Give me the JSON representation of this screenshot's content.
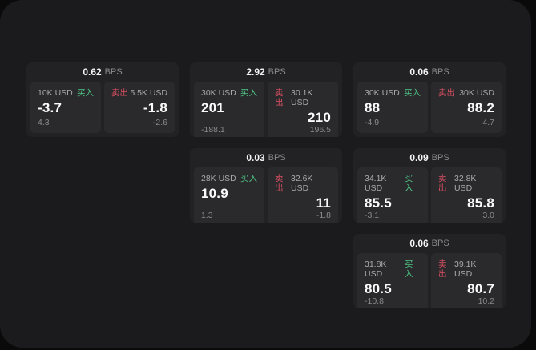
{
  "colors": {
    "buy_green": "#4ec584",
    "sell_red": "#d94f62",
    "panel_bg": "#1b1b1d",
    "card_bg": "#222224",
    "subpanel_bg": "#2a2a2c"
  },
  "cards": [
    {
      "row": 1,
      "col": 1,
      "bps_value": "0.62",
      "bps_label": "BPS",
      "buy": {
        "amount": "10K USD",
        "side_label": "买入",
        "value": "-3.7",
        "delta": "4.3"
      },
      "sell": {
        "side_label": "卖出",
        "amount": "5.5K USD",
        "value": "-1.8",
        "delta": "-2.6"
      }
    },
    {
      "row": 1,
      "col": 2,
      "bps_value": "2.92",
      "bps_label": "BPS",
      "buy": {
        "amount": "30K USD",
        "side_label": "买入",
        "value": "201",
        "delta": "-188.1"
      },
      "sell": {
        "side_label": "卖出",
        "amount": "30.1K USD",
        "value": "210",
        "delta": "196.5"
      }
    },
    {
      "row": 1,
      "col": 3,
      "bps_value": "0.06",
      "bps_label": "BPS",
      "buy": {
        "amount": "30K USD",
        "side_label": "买入",
        "value": "88",
        "delta": "-4.9"
      },
      "sell": {
        "side_label": "卖出",
        "amount": "30K USD",
        "value": "88.2",
        "delta": "4.7"
      }
    },
    {
      "row": 2,
      "col": 2,
      "bps_value": "0.03",
      "bps_label": "BPS",
      "buy": {
        "amount": "28K USD",
        "side_label": "买入",
        "value": "10.9",
        "delta": "1.3"
      },
      "sell": {
        "side_label": "卖出",
        "amount": "32.6K USD",
        "value": "11",
        "delta": "-1.8"
      }
    },
    {
      "row": 2,
      "col": 3,
      "bps_value": "0.09",
      "bps_label": "BPS",
      "buy": {
        "amount": "34.1K USD",
        "side_label": "买入",
        "value": "85.5",
        "delta": "-3.1"
      },
      "sell": {
        "side_label": "卖出",
        "amount": "32.8K USD",
        "value": "85.8",
        "delta": "3.0"
      }
    },
    {
      "row": 3,
      "col": 3,
      "bps_value": "0.06",
      "bps_label": "BPS",
      "buy": {
        "amount": "31.8K USD",
        "side_label": "买入",
        "value": "80.5",
        "delta": "-10.8"
      },
      "sell": {
        "side_label": "卖出",
        "amount": "39.1K USD",
        "value": "80.7",
        "delta": "10.2"
      }
    }
  ]
}
